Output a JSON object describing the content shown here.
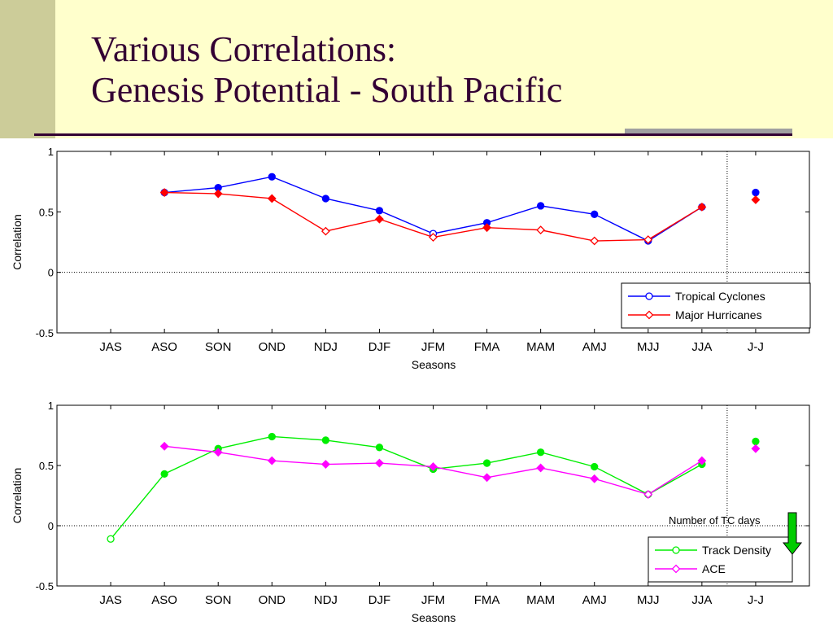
{
  "slide": {
    "title_line1": "Various Correlations:",
    "title_line2": "Genesis Potential - South Pacific",
    "colors": {
      "background": "#ffffcc",
      "strip": "#cccc99",
      "title": "#330033",
      "rule": "#330033",
      "rule_accent": "#a0a0a0"
    }
  },
  "chart_data": [
    {
      "type": "line",
      "xlabel": "Seasons",
      "ylabel": "Correlation",
      "ylim": [
        -0.5,
        1
      ],
      "yticks": [
        -0.5,
        0,
        0.5,
        1
      ],
      "categories": [
        "JAS",
        "ASO",
        "SON",
        "OND",
        "NDJ",
        "DJF",
        "JFM",
        "FMA",
        "MAM",
        "AMJ",
        "MJJ",
        "JJA",
        "J-J"
      ],
      "reference_lines": {
        "y_zero": "dotted",
        "x_between_JJA_and_J-J": "dotted"
      },
      "legend": {
        "position": "bottom-right"
      },
      "series": [
        {
          "name": "Tropical Cyclones",
          "color": "#0000ff",
          "marker": "circle",
          "values": [
            null,
            0.66,
            0.7,
            0.79,
            0.61,
            0.51,
            0.32,
            0.41,
            0.55,
            0.48,
            0.26,
            0.54,
            0.66
          ],
          "filled": [
            false,
            true,
            true,
            true,
            true,
            true,
            false,
            true,
            true,
            true,
            true,
            true,
            true
          ],
          "connected_to": 11
        },
        {
          "name": "Major Hurricanes",
          "color": "#ff0000",
          "marker": "diamond",
          "values": [
            null,
            0.66,
            0.65,
            0.61,
            0.34,
            0.44,
            0.29,
            0.37,
            0.35,
            0.26,
            0.27,
            0.54,
            0.6
          ],
          "filled": [
            false,
            true,
            true,
            true,
            false,
            true,
            false,
            true,
            false,
            false,
            false,
            true,
            true
          ],
          "connected_to": 11
        }
      ]
    },
    {
      "type": "line",
      "xlabel": "Seasons",
      "ylabel": "Correlation",
      "ylim": [
        -0.5,
        1
      ],
      "yticks": [
        -0.5,
        0,
        0.5,
        1
      ],
      "categories": [
        "JAS",
        "ASO",
        "SON",
        "OND",
        "NDJ",
        "DJF",
        "JFM",
        "FMA",
        "MAM",
        "AMJ",
        "MJJ",
        "JJA",
        "J-J"
      ],
      "reference_lines": {
        "y_zero": "dotted",
        "x_between_JJA_and_J-J": "dotted"
      },
      "legend": {
        "position": "bottom-right"
      },
      "annotation": {
        "text": "Number of TC days",
        "arrow": "down",
        "arrow_color": "#00cc00"
      },
      "series": [
        {
          "name": "Track Density",
          "color": "#00ee00",
          "marker": "circle",
          "values": [
            -0.11,
            0.43,
            0.64,
            0.74,
            0.71,
            0.65,
            0.47,
            0.52,
            0.61,
            0.49,
            0.26,
            0.51,
            0.7
          ],
          "filled": [
            false,
            true,
            true,
            true,
            true,
            true,
            true,
            true,
            true,
            true,
            false,
            true,
            true
          ],
          "connected_to": 11
        },
        {
          "name": "ACE",
          "color": "#ff00ff",
          "marker": "diamond",
          "values": [
            null,
            0.66,
            0.61,
            0.54,
            0.51,
            0.52,
            0.49,
            0.4,
            0.48,
            0.39,
            0.26,
            0.54,
            0.64
          ],
          "filled": [
            false,
            true,
            true,
            true,
            true,
            true,
            true,
            true,
            true,
            true,
            false,
            true,
            true
          ],
          "connected_to": 11
        }
      ]
    }
  ]
}
